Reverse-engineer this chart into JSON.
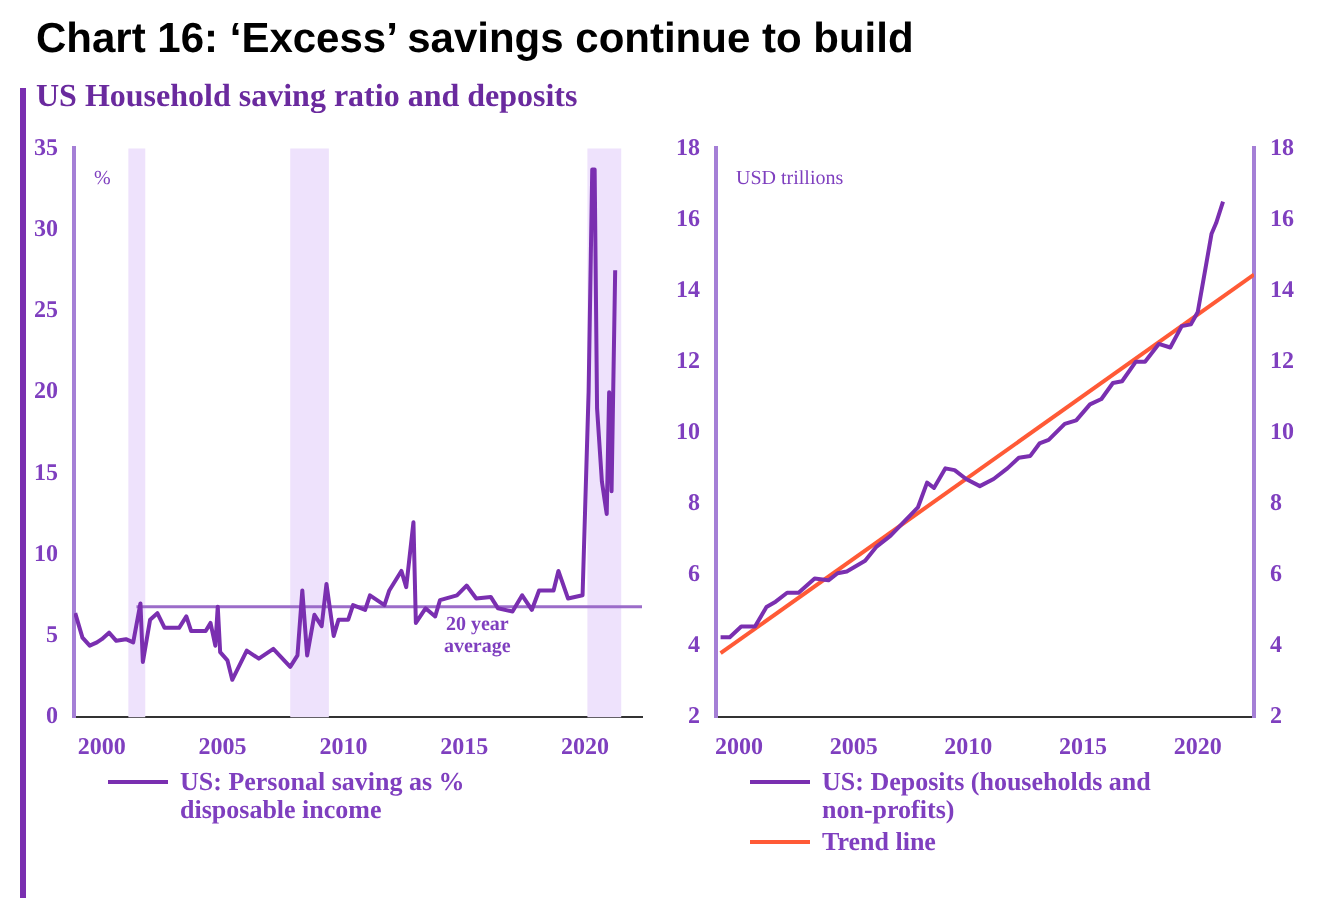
{
  "chart_data": [
    {
      "type": "line",
      "title": "Chart 16: ‘Excess’ savings continue to build",
      "subtitle": "US Household saving ratio and deposits",
      "ylabel": "%",
      "xlim": [
        1998.85,
        2022.36
      ],
      "xticks": [
        2000,
        2005,
        2010,
        2015,
        2020
      ],
      "ylim": [
        0,
        35
      ],
      "yticks": [
        0,
        5,
        10,
        15,
        20,
        25,
        30,
        35
      ],
      "legend": "bottom",
      "grid": false,
      "marker": "none",
      "bands": [
        {
          "axis": "x",
          "from": 2001.1,
          "to": 2001.8,
          "color": "#eee2fc"
        },
        {
          "axis": "x",
          "from": 2007.8,
          "to": 2009.4,
          "color": "#eee2fc"
        },
        {
          "axis": "x",
          "from": 2020.1,
          "to": 2021.5,
          "color": "#eee2fc"
        }
      ],
      "ref_lines": [
        {
          "axis": "y",
          "value": 6.8,
          "label": "20 year average",
          "color": "#9b6cc9"
        }
      ],
      "series": [
        {
          "name": "US: Personal saving as % disposable income",
          "color": "#7a2fb0",
          "x": [
            1998.9,
            1999.2,
            1999.5,
            1999.8,
            2000.0,
            2000.3,
            2000.6,
            2001.0,
            2001.3,
            2001.6,
            2001.7,
            2002.0,
            2002.3,
            2002.6,
            2003.2,
            2003.5,
            2003.7,
            2004.3,
            2004.5,
            2004.7,
            2004.8,
            2004.9,
            2005.2,
            2005.4,
            2006.0,
            2006.5,
            2007.1,
            2007.8,
            2008.1,
            2008.3,
            2008.5,
            2008.8,
            2009.1,
            2009.3,
            2009.6,
            2009.8,
            2010.2,
            2010.4,
            2010.9,
            2011.1,
            2011.7,
            2011.9,
            2012.4,
            2012.6,
            2012.9,
            2013.0,
            2013.4,
            2013.8,
            2014.0,
            2014.7,
            2015.1,
            2015.5,
            2016.1,
            2016.4,
            2017.0,
            2017.4,
            2017.8,
            2018.1,
            2018.7,
            2018.9,
            2019.3,
            2019.9,
            2020.15,
            2020.3,
            2020.4,
            2020.5,
            2020.7,
            2020.9,
            2021.0,
            2021.1,
            2021.25
          ],
          "values": [
            6.4,
            4.9,
            4.4,
            4.6,
            4.8,
            5.2,
            4.7,
            4.8,
            4.6,
            7.0,
            3.4,
            6.0,
            6.4,
            5.5,
            5.5,
            6.2,
            5.3,
            5.3,
            5.8,
            4.4,
            6.8,
            4.0,
            3.5,
            2.3,
            4.1,
            3.6,
            4.2,
            3.1,
            3.8,
            7.8,
            3.8,
            6.3,
            5.6,
            8.2,
            5.0,
            6.0,
            6.0,
            6.9,
            6.6,
            7.5,
            6.9,
            7.8,
            9.0,
            8.0,
            12.0,
            5.8,
            6.7,
            6.2,
            7.2,
            7.5,
            8.1,
            7.3,
            7.4,
            6.7,
            6.5,
            7.5,
            6.6,
            7.8,
            7.8,
            9.0,
            7.3,
            7.5,
            20,
            33.7,
            33.7,
            19,
            14.5,
            12.5,
            20,
            13.9,
            27.5
          ]
        }
      ]
    },
    {
      "type": "line",
      "ylabel": "USD trillions",
      "xlim": [
        1999.0,
        2022.45
      ],
      "xticks": [
        2000,
        2005,
        2010,
        2015,
        2020
      ],
      "ylim": [
        2,
        18
      ],
      "yticks": [
        2,
        4,
        6,
        8,
        10,
        12,
        14,
        16,
        18
      ],
      "y2lim": [
        2,
        18
      ],
      "y2ticks": [
        2,
        4,
        6,
        8,
        10,
        12,
        14,
        16,
        18
      ],
      "legend": "bottom",
      "grid": false,
      "marker": "none",
      "series": [
        {
          "name": "US: Deposits (households and non-profits)",
          "color": "#7a2fb0",
          "x": [
            1999.2,
            1999.6,
            2000.1,
            2000.7,
            2001.2,
            2001.6,
            2002.1,
            2002.6,
            2003.3,
            2003.9,
            2004.3,
            2004.7,
            2005.5,
            2006.0,
            2006.6,
            2007.2,
            2007.8,
            2008.2,
            2008.5,
            2009.0,
            2009.4,
            2009.9,
            2010.5,
            2011.1,
            2011.7,
            2012.2,
            2012.7,
            2013.1,
            2013.5,
            2014.2,
            2014.7,
            2015.3,
            2015.8,
            2016.3,
            2016.7,
            2017.3,
            2017.7,
            2018.3,
            2018.8,
            2019.3,
            2019.7,
            2020.0,
            2020.3,
            2020.6,
            2020.8,
            2021.1
          ],
          "values": [
            4.25,
            4.25,
            4.55,
            4.55,
            5.1,
            5.25,
            5.5,
            5.5,
            5.9,
            5.85,
            6.05,
            6.1,
            6.4,
            6.8,
            7.1,
            7.5,
            7.9,
            8.6,
            8.45,
            9.0,
            8.95,
            8.7,
            8.5,
            8.7,
            9.0,
            9.3,
            9.35,
            9.7,
            9.8,
            10.25,
            10.35,
            10.8,
            10.95,
            11.4,
            11.45,
            12.0,
            12.0,
            12.5,
            12.4,
            13.0,
            13.05,
            13.4,
            14.5,
            15.6,
            15.9,
            16.5
          ]
        },
        {
          "name": "Trend line",
          "color": "#ff5a36",
          "x": [
            1999.2,
            2022.45
          ],
          "values": [
            3.8,
            14.45
          ]
        }
      ]
    }
  ]
}
